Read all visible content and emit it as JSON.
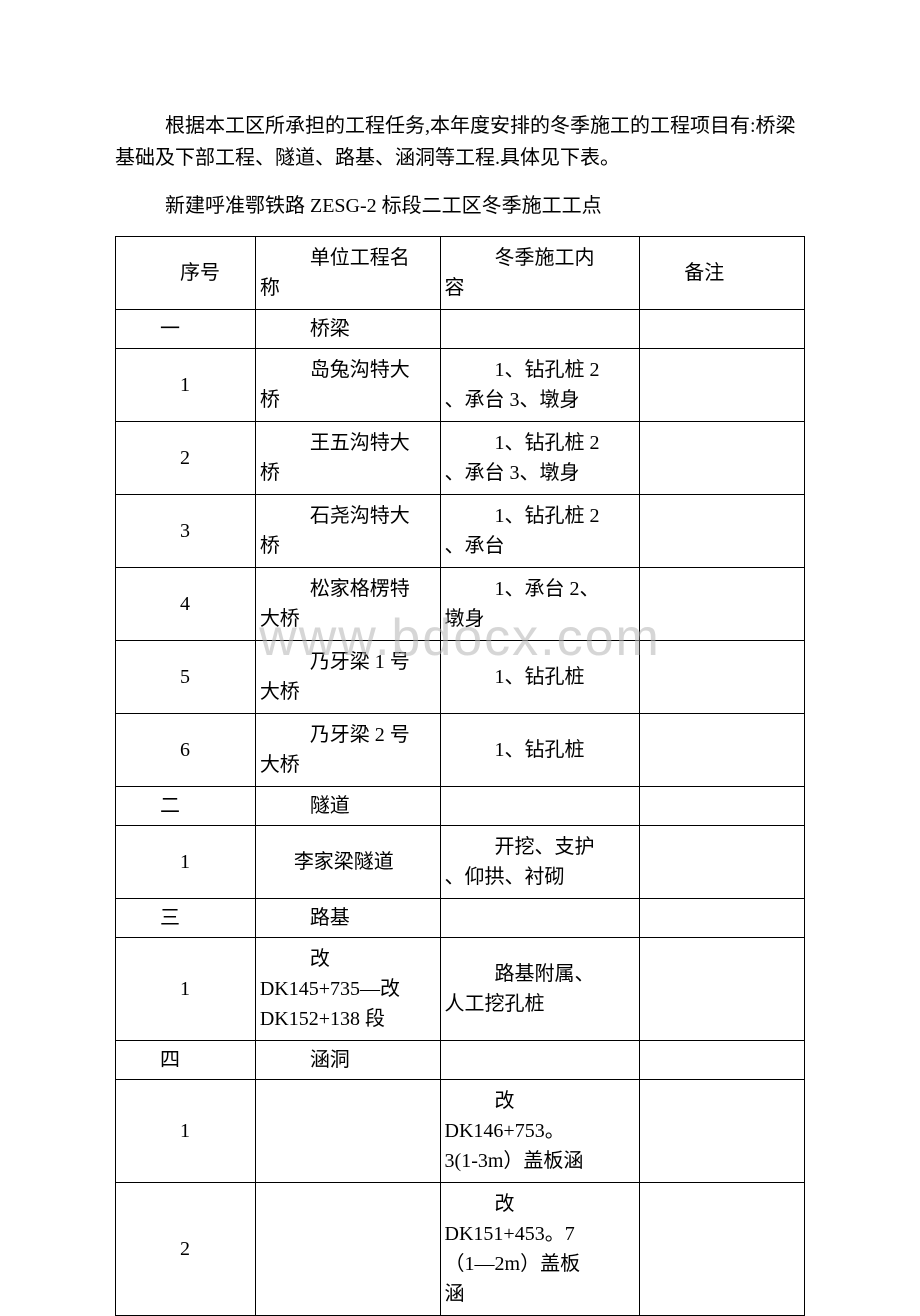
{
  "paragraph": "根据本工区所承担的工程任务,本年度安排的冬季施工的工程项目有:桥梁基础及下部工程、隧道、路基、涵洞等工程.具体见下表。",
  "subtitle": "新建呼准鄂铁路 ZESG-2 标段二工区冬季施工工点",
  "watermark": "www.bdocx.com",
  "columns": {
    "c1": "序号",
    "c2_line1": "单位工程名",
    "c2_line2": "称",
    "c3_line1": "冬季施工内",
    "c3_line2": "容",
    "c4": "备注"
  },
  "rows": [
    {
      "c1": "一",
      "c2_l1": "桥梁",
      "c2_l2": "",
      "c3_l1": "",
      "c3_l2": "",
      "short": true
    },
    {
      "c1": "1",
      "c2_l1": "岛兔沟特大",
      "c2_l2": "桥",
      "c3_l1": "1、钻孔桩 2",
      "c3_l2": "、承台 3、墩身"
    },
    {
      "c1": "2",
      "c2_l1": "王五沟特大",
      "c2_l2": "桥",
      "c3_l1": "1、钻孔桩 2",
      "c3_l2": "、承台 3、墩身"
    },
    {
      "c1": "3",
      "c2_l1": "石尧沟特大",
      "c2_l2": "桥",
      "c3_l1": "1、钻孔桩 2",
      "c3_l2": "、承台"
    },
    {
      "c1": "4",
      "c2_l1": "松家格楞特",
      "c2_l2": "大桥",
      "c3_l1": "1、承台 2、",
      "c3_l2": "墩身"
    },
    {
      "c1": "5",
      "c2_l1": "乃牙梁 1 号",
      "c2_l2": "大桥",
      "c3_l1": "1、钻孔桩",
      "c3_l2": ""
    },
    {
      "c1": "6",
      "c2_l1": "乃牙梁 2 号",
      "c2_l2": "大桥",
      "c3_l1": "1、钻孔桩",
      "c3_l2": ""
    },
    {
      "c1": "二",
      "c2_l1": "隧道",
      "c2_l2": "",
      "c3_l1": "",
      "c3_l2": "",
      "short": true
    },
    {
      "c1": "1",
      "c2_l1": "李家梁隧道",
      "c2_l2": "",
      "c3_l1": "开挖、支护",
      "c3_l2": "、仰拱、衬砌",
      "single2": true
    },
    {
      "c1": "三",
      "c2_l1": "路基",
      "c2_l2": "",
      "c3_l1": "",
      "c3_l2": "",
      "short": true
    },
    {
      "c1": "1",
      "c2_l1": "改",
      "c2_l2": "DK145+735—改",
      "c2_l3": "DK152+138 段",
      "c3_l1": "路基附属、",
      "c3_l2": "人工挖孔桩",
      "triple2": true
    },
    {
      "c1": "四",
      "c2_l1": "涵洞",
      "c2_l2": "",
      "c3_l1": "",
      "c3_l2": "",
      "short": true
    },
    {
      "c1": "1",
      "c2_l1": "",
      "c2_l2": "",
      "c3_l1": "改",
      "c3_l2": "DK146+753。",
      "c3_l3": "3(1-3m）盖板涵",
      "triple3": true
    },
    {
      "c1": "2",
      "c2_l1": "",
      "c2_l2": "",
      "c3_l1": "改",
      "c3_l2": "DK151+453。7",
      "c3_l3": "（1—2m）盖板",
      "c3_l4": "涵",
      "quad3": true
    }
  ]
}
